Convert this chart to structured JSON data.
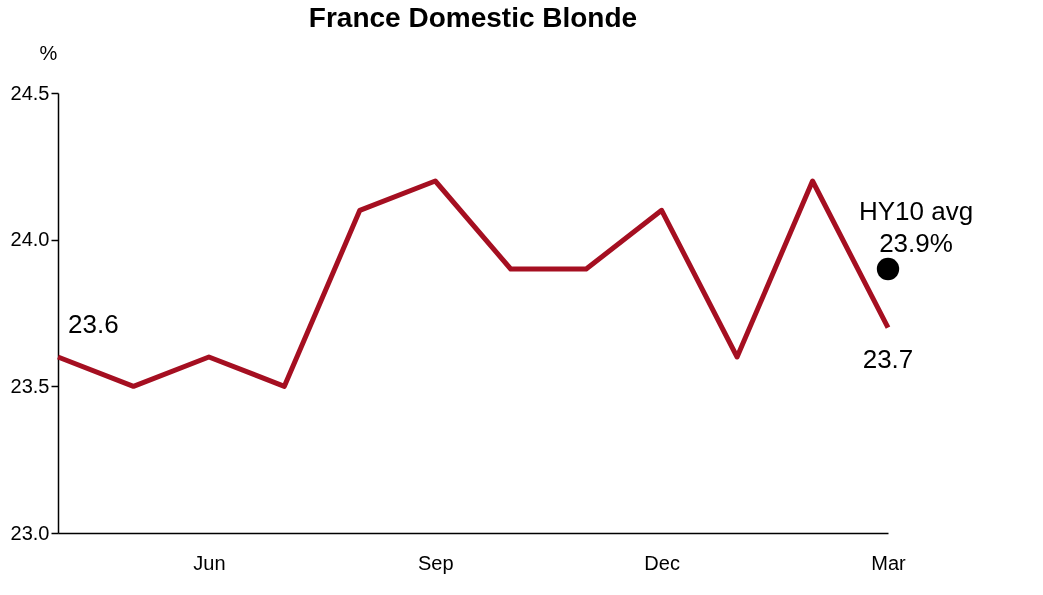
{
  "chart_data": {
    "type": "line",
    "title": "France Domestic Blonde",
    "ylabel": "%",
    "categories": [
      null,
      null,
      "Jun",
      null,
      null,
      "Sep",
      null,
      null,
      "Dec",
      null,
      null,
      "Mar"
    ],
    "series": [
      {
        "color": "#a50f21",
        "values": [
          23.6,
          23.5,
          23.6,
          23.5,
          24.1,
          24.2,
          23.9,
          23.9,
          24.1,
          23.6,
          24.2,
          23.7
        ],
        "value_labels": [
          "23.6",
          null,
          null,
          null,
          null,
          null,
          null,
          null,
          null,
          null,
          null,
          "23.7"
        ]
      },
      {
        "type": "scatter",
        "color": "#000000",
        "x": [
          "Mar"
        ],
        "values": [
          23.9
        ]
      }
    ],
    "annotations": [
      {
        "text": "HY10 avg\n23.9%",
        "x": "Mar",
        "y": 23.9
      }
    ],
    "ylim": [
      23.0,
      24.5
    ],
    "yticks": [
      {
        "value": 23.0,
        "label": "23.0"
      },
      {
        "value": 23.5,
        "label": "23.5"
      },
      {
        "value": 24.0,
        "label": "24.0"
      },
      {
        "value": 24.5,
        "label": "24.5"
      }
    ],
    "grid": false,
    "line_style": "solid"
  }
}
